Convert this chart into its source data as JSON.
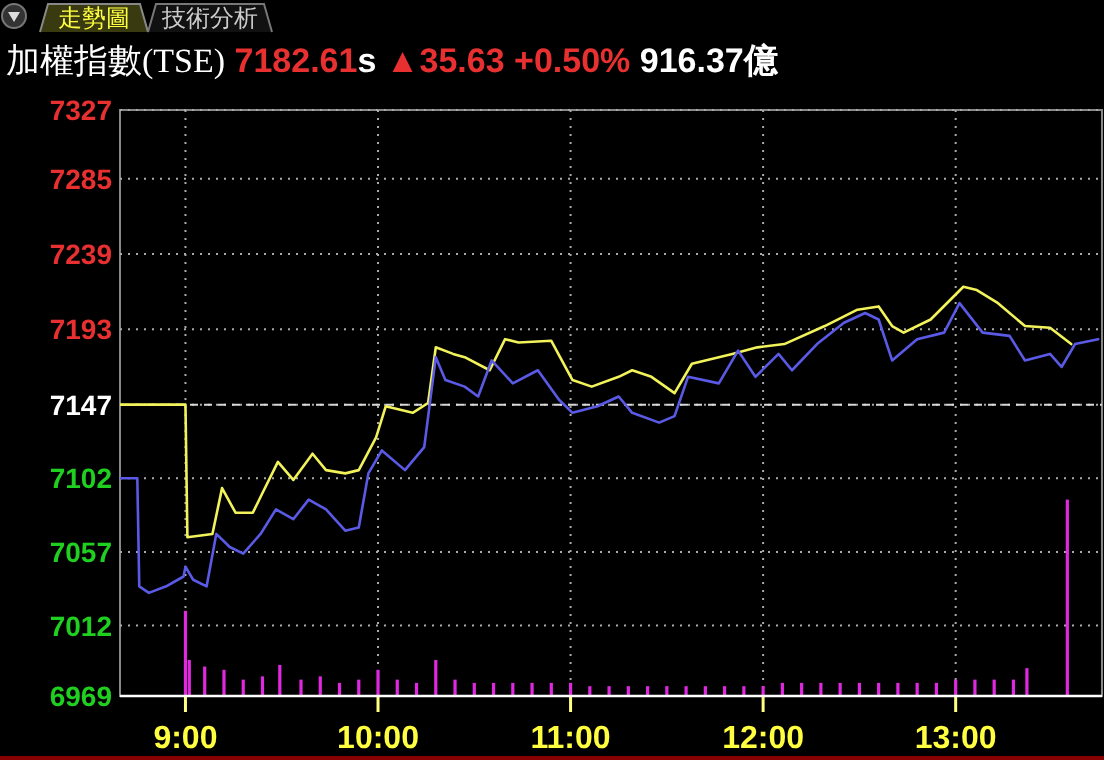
{
  "chart_data": {
    "type": "line",
    "title": "加權指數(TSE)",
    "annotations": [
      "走勢圖",
      "技術分析",
      "7182.61",
      "s",
      "▲35.63",
      "+0.50%",
      "916.37億"
    ],
    "xlim": [
      8.66,
      13.76
    ],
    "xticks": [
      {
        "value": 9,
        "label": "9:00"
      },
      {
        "value": 10,
        "label": "10:00"
      },
      {
        "value": 11,
        "label": "11:00"
      },
      {
        "value": 12,
        "label": "12:00"
      },
      {
        "value": 13,
        "label": "13:00"
      }
    ],
    "ylim": [
      6969,
      7327
    ],
    "yticks": [
      6969,
      7012,
      7057,
      7102,
      7147,
      7193,
      7239,
      7285,
      7327
    ],
    "grid": true,
    "ref_lines": [
      {
        "axis": "y",
        "value": 7147,
        "color": "#d8d8d8",
        "line_style": "dashed"
      }
    ],
    "series": [
      {
        "color": "#f2f25a",
        "x": [
          8.66,
          9.0,
          9.01,
          9.14,
          9.19,
          9.26,
          9.35,
          9.4,
          9.48,
          9.56,
          9.66,
          9.73,
          9.83,
          9.9,
          9.99,
          10.04,
          10.11,
          10.18,
          10.26,
          10.3,
          10.39,
          10.45,
          10.58,
          10.66,
          10.73,
          10.9,
          11.01,
          11.11,
          11.25,
          11.32,
          11.42,
          11.54,
          11.63,
          11.84,
          11.97,
          12.11,
          12.32,
          12.49,
          12.6,
          12.67,
          12.73,
          12.87,
          13.04,
          13.11,
          13.22,
          13.36,
          13.49,
          13.6
        ],
        "values": [
          7147,
          7147,
          7066,
          7068,
          7096,
          7081,
          7081,
          7093,
          7112,
          7101,
          7117,
          7107,
          7105,
          7107,
          7127,
          7146,
          7144,
          7142,
          7148,
          7182,
          7178,
          7176,
          7168,
          7187,
          7185,
          7186,
          7162,
          7158,
          7164,
          7168,
          7164,
          7154,
          7172,
          7178,
          7182,
          7184,
          7195,
          7205,
          7207,
          7195,
          7191,
          7199,
          7219,
          7217,
          7209,
          7195,
          7194,
          7184
        ]
      },
      {
        "color": "#5a5ae6",
        "x": [
          8.66,
          8.75,
          8.76,
          8.81,
          8.9,
          8.99,
          9.0,
          9.04,
          9.11,
          9.16,
          9.23,
          9.3,
          9.39,
          9.47,
          9.56,
          9.64,
          9.73,
          9.83,
          9.9,
          9.95,
          10.02,
          10.14,
          10.24,
          10.3,
          10.35,
          10.45,
          10.52,
          10.59,
          10.7,
          10.83,
          10.94,
          11.01,
          11.14,
          11.25,
          11.32,
          11.46,
          11.54,
          11.61,
          11.77,
          11.87,
          11.96,
          12.08,
          12.15,
          12.28,
          12.42,
          12.53,
          12.6,
          12.67,
          12.8,
          12.94,
          13.02,
          13.14,
          13.28,
          13.36,
          13.49,
          13.55,
          13.62,
          13.74
        ],
        "values": [
          7102,
          7102,
          7036,
          7032,
          7036,
          7042,
          7048,
          7040,
          7036,
          7068,
          7060,
          7056,
          7068,
          7083,
          7077,
          7089,
          7083,
          7070,
          7072,
          7105,
          7119,
          7107,
          7121,
          7176,
          7162,
          7158,
          7152,
          7174,
          7160,
          7168,
          7150,
          7142,
          7146,
          7152,
          7142,
          7136,
          7140,
          7164,
          7160,
          7180,
          7164,
          7178,
          7168,
          7184,
          7197,
          7203,
          7199,
          7174,
          7187,
          7191,
          7209,
          7191,
          7189,
          7174,
          7178,
          7170,
          7184,
          7187
        ]
      },
      {
        "type": "bar",
        "color": "#e028e0",
        "x": [
          9.0,
          9.02,
          9.1,
          9.2,
          9.3,
          9.4,
          9.49,
          9.6,
          9.7,
          9.8,
          9.9,
          10.0,
          10.1,
          10.2,
          10.3,
          10.4,
          10.5,
          10.6,
          10.7,
          10.8,
          10.9,
          11.0,
          11.1,
          11.2,
          11.3,
          11.4,
          11.5,
          11.6,
          11.7,
          11.8,
          11.9,
          12.0,
          12.1,
          12.2,
          12.3,
          12.4,
          12.5,
          12.6,
          12.7,
          12.8,
          12.9,
          13.0,
          13.1,
          13.2,
          13.3,
          13.37,
          13.58
        ],
        "values": [
          7021,
          6991,
          6987,
          6985,
          6979,
          6981,
          6988,
          6979,
          6981,
          6977,
          6979,
          6985,
          6979,
          6977,
          6991,
          6979,
          6977,
          6977,
          6977,
          6977,
          6977,
          6977,
          6975,
          6975,
          6975,
          6975,
          6975,
          6975,
          6975,
          6975,
          6975,
          6975,
          6977,
          6977,
          6977,
          6977,
          6977,
          6977,
          6977,
          6977,
          6977,
          6979,
          6979,
          6979,
          6979,
          6986,
          7089
        ]
      }
    ]
  }
}
